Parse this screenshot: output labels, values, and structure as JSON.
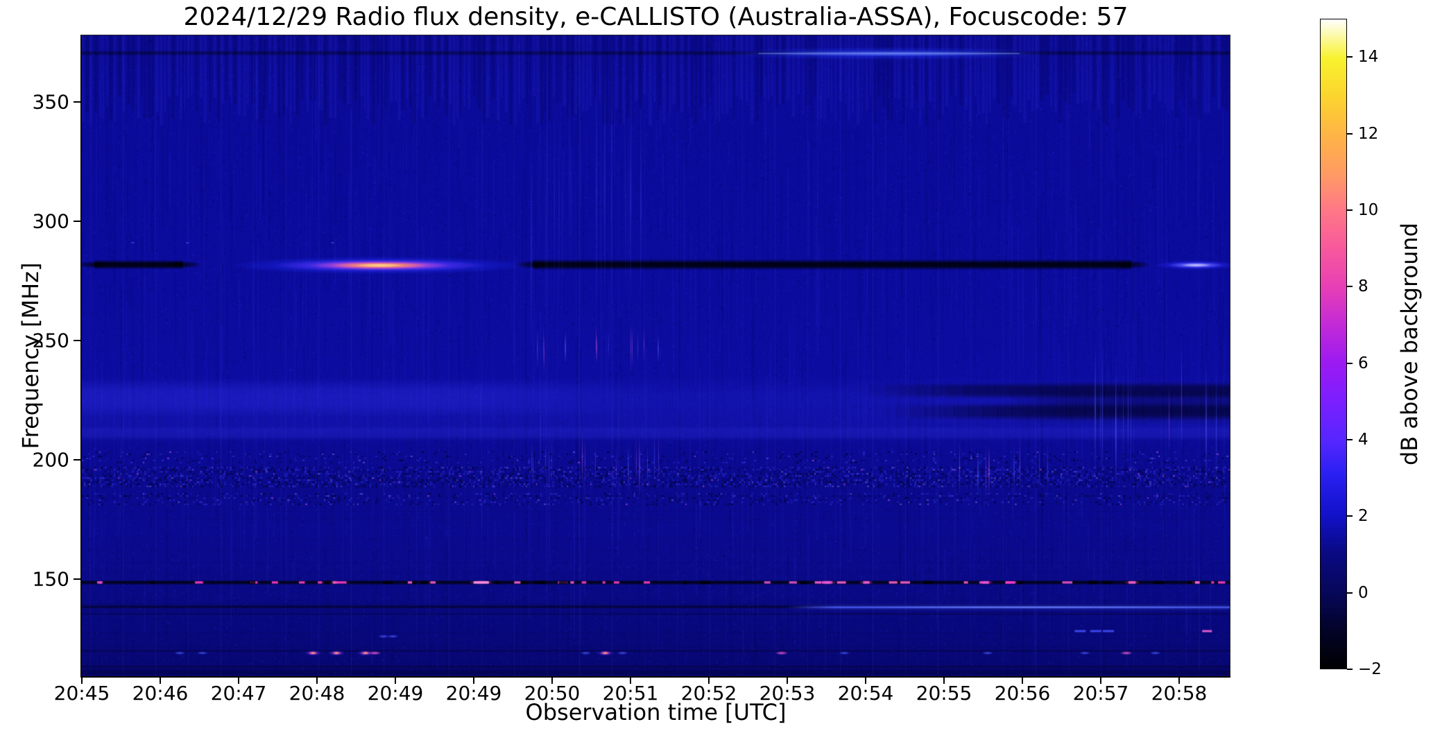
{
  "title": "2024/12/29  Radio flux density, e-CALLISTO (Australia-ASSA), Focuscode: 57",
  "x_axis": {
    "label": "Observation time [UTC]",
    "ticks": [
      "20:45",
      "20:46",
      "20:47",
      "20:48",
      "20:49",
      "20:49",
      "20:50",
      "20:51",
      "20:52",
      "20:53",
      "20:54",
      "20:55",
      "20:56",
      "20:57",
      "20:58"
    ]
  },
  "y_axis": {
    "label": "Frequency [MHz]",
    "ticks": [
      350,
      300,
      250,
      200,
      150
    ]
  },
  "colorbar": {
    "label": "dB above background",
    "range_db": [
      -2,
      15
    ],
    "ticks": [
      14,
      12,
      10,
      8,
      6,
      4,
      2,
      0,
      -2
    ],
    "tick_labels": [
      "14",
      "12",
      "10",
      "8",
      "6",
      "4",
      "2",
      "0",
      "−2"
    ],
    "gradient_stops": [
      [
        0,
        "#000000"
      ],
      [
        0.06,
        "#03032a"
      ],
      [
        0.12,
        "#07075c"
      ],
      [
        0.18,
        "#0a0a85"
      ],
      [
        0.235,
        "#1111c8"
      ],
      [
        0.3,
        "#2a20f2"
      ],
      [
        0.35,
        "#5526ff"
      ],
      [
        0.41,
        "#7a1fff"
      ],
      [
        0.47,
        "#9b1af2"
      ],
      [
        0.53,
        "#c32ad6"
      ],
      [
        0.59,
        "#e840b4"
      ],
      [
        0.65,
        "#f85a9b"
      ],
      [
        0.71,
        "#ff7a85"
      ],
      [
        0.76,
        "#ff9a64"
      ],
      [
        0.82,
        "#ffb347"
      ],
      [
        0.88,
        "#fbd42e"
      ],
      [
        0.94,
        "#f8f22e"
      ],
      [
        1,
        "#ffffff"
      ]
    ]
  },
  "chart_data": {
    "type": "heatmap",
    "title": "2024/12/29  Radio flux density, e-CALLISTO (Australia-ASSA), Focuscode: 57",
    "xlabel": "Observation time [UTC]",
    "ylabel": "Frequency [MHz]",
    "x_start_utc": "20:45",
    "x_range_minutes": [
      0,
      14.65
    ],
    "y_range_mhz": [
      109.3,
      377.9
    ],
    "value_unit": "dB above background",
    "value_range": [
      -2,
      15
    ],
    "background_level_db": 1,
    "base_color": "#0b0b9b",
    "features": [
      {
        "id": "line-370-dark",
        "type": "dark_line",
        "f": 370.5,
        "t": [
          0,
          14.65
        ],
        "th": 4,
        "alpha": 0.38
      },
      {
        "id": "streak-370-bright",
        "type": "streak",
        "f": 370.3,
        "t_center": 10.3,
        "half_min": 1.85,
        "ry": 4,
        "core": "#5c78ff",
        "glow": "#2138ff"
      },
      {
        "id": "line-281-dark-left",
        "type": "dark_seg",
        "f": 281.8,
        "t": [
          0,
          1.45
        ],
        "th": 7,
        "alpha": 0.88
      },
      {
        "id": "line-281-dark-main",
        "type": "dark_seg",
        "f": 281.8,
        "t": [
          5.6,
          13.55
        ],
        "th": 8,
        "alpha": 0.88
      },
      {
        "id": "burst-281-main",
        "type": "burst",
        "f": 281.5,
        "t_center": 3.8,
        "layers": [
          [
            1.95,
            13,
            "#2230ff",
            0.75
          ],
          [
            1.35,
            9,
            "#7a3bff",
            0.85
          ],
          [
            0.9,
            6.5,
            "#ff58c4",
            0.92
          ],
          [
            0.62,
            4.5,
            "#ff9a49",
            0.98
          ],
          [
            0.33,
            2.8,
            "#ffd88f",
            1
          ]
        ]
      },
      {
        "id": "burst-281-right",
        "type": "burst",
        "f": 281.6,
        "t_center": 14.22,
        "layers": [
          [
            0.55,
            7,
            "#2a2aff",
            0.8
          ],
          [
            0.36,
            4.5,
            "#6e6eff",
            0.9
          ],
          [
            0.2,
            2.6,
            "#cfcaff",
            0.95
          ]
        ]
      },
      {
        "id": "specks-291",
        "type": "dots",
        "f": 291,
        "dots": [
          [
            0.65,
            "speck"
          ],
          [
            1.35,
            "speck"
          ],
          [
            3.2,
            "speck"
          ]
        ]
      },
      {
        "id": "haze-207-235",
        "type": "soft_band",
        "f": [
          207,
          235
        ],
        "t": [
          0,
          14.65
        ],
        "color": "#2e2ee8",
        "alpha": 0.18
      },
      {
        "id": "haze-218-234-left",
        "type": "soft_band",
        "f": [
          218,
          234
        ],
        "t": [
          0,
          7.2
        ],
        "color": "#3535f0",
        "alpha": 0.22,
        "fade": "right"
      },
      {
        "id": "haze-208-215",
        "type": "soft_band",
        "f": [
          208,
          214.5
        ],
        "t": [
          0,
          14.65
        ],
        "color": "#3a3af2",
        "alpha": 0.2
      },
      {
        "id": "dark-band-right-upper",
        "type": "soft_band",
        "f": [
          225.5,
          232.5
        ],
        "t": [
          9.85,
          14.65
        ],
        "color": "#000022",
        "alpha": 0.5,
        "fade": "left"
      },
      {
        "id": "dark-band-right-lower",
        "type": "soft_band",
        "f": [
          216.5,
          224
        ],
        "t": [
          10.2,
          14.65
        ],
        "color": "#000022",
        "alpha": 0.5,
        "fade": "left"
      },
      {
        "id": "dark-band-right-merge",
        "type": "soft_band",
        "f": [
          214.5,
          233.5
        ],
        "t": [
          11.7,
          14.65
        ],
        "color": "#000022",
        "alpha": 0.32,
        "fade": "left"
      },
      {
        "id": "speckle-189-197",
        "type": "speckle",
        "f": [
          188.5,
          197
        ],
        "t": [
          0,
          14.65
        ],
        "density": 0.6
      },
      {
        "id": "speckle-181-186",
        "type": "speckle",
        "f": [
          181,
          186
        ],
        "t": [
          0,
          14.65
        ],
        "density": 0.3
      },
      {
        "id": "speckle-199-203",
        "type": "speckle",
        "f": [
          198.5,
          203.5
        ],
        "t": [
          0,
          14.65
        ],
        "density": 0.16
      },
      {
        "id": "hatch-150-160",
        "type": "hatch",
        "f": [
          149.5,
          160
        ],
        "t": [
          0,
          14.65
        ]
      },
      {
        "id": "hatch-139-147",
        "type": "hatch",
        "f": [
          139,
          147.5
        ],
        "t": [
          0,
          14.65
        ]
      },
      {
        "id": "dash-148",
        "type": "dash_line",
        "f": 148.6,
        "t": [
          0,
          14.65
        ],
        "n": 95,
        "special_t": 5.0
      },
      {
        "id": "line-138-dark",
        "type": "dark_line",
        "f": 138.4,
        "t": [
          0,
          14.65
        ],
        "th": 3,
        "alpha": 0.5
      },
      {
        "id": "line-135-dark",
        "type": "dark_line",
        "f": 135.4,
        "t": [
          0,
          14.65
        ],
        "th": 2,
        "alpha": 0.22
      },
      {
        "id": "line-138-bright",
        "type": "bright_line",
        "f": 138.2,
        "t": [
          9.0,
          14.65
        ],
        "color": "#4a5cff",
        "th": 2.4
      },
      {
        "id": "line-120-dark",
        "type": "dark_line",
        "f": 119.9,
        "t": [
          0,
          14.65
        ],
        "th": 2,
        "alpha": 0.28
      },
      {
        "id": "dots-119",
        "type": "dots",
        "f": 119,
        "dots": [
          [
            1.25,
            "blue"
          ],
          [
            1.54,
            "blue"
          ],
          [
            2.95,
            "hot"
          ],
          [
            3.25,
            "hot"
          ],
          [
            3.62,
            "hot"
          ],
          [
            3.74,
            "pink"
          ],
          [
            6.43,
            "blue"
          ],
          [
            6.68,
            "hot"
          ],
          [
            6.9,
            "blue"
          ],
          [
            8.93,
            "pink"
          ],
          [
            9.73,
            "blue"
          ],
          [
            11.56,
            "blue"
          ],
          [
            12.8,
            "blue"
          ],
          [
            13.33,
            "pink"
          ],
          [
            13.7,
            "blue"
          ]
        ]
      },
      {
        "id": "dots-126",
        "type": "dots",
        "f": 126,
        "dots": [
          [
            3.85,
            "blue"
          ],
          [
            3.97,
            "blue"
          ]
        ]
      },
      {
        "id": "dashes-128",
        "type": "dots",
        "f": 128.2,
        "dots": [
          [
            12.74,
            "bluedash"
          ],
          [
            12.94,
            "bluedash"
          ],
          [
            13.1,
            "bluedash"
          ],
          [
            14.36,
            "pinkdash"
          ]
        ]
      },
      {
        "id": "band-111-dark",
        "type": "soft_band",
        "f": [
          109.3,
          112.5
        ],
        "t": [
          0,
          14.65
        ],
        "color": "#000030",
        "alpha": 0.38
      },
      {
        "id": "line-113-dark",
        "type": "dark_line",
        "f": 113.3,
        "t": [
          0,
          14.65
        ],
        "th": 2,
        "alpha": 0.32
      },
      {
        "id": "vstreaks-mid-upper",
        "type": "vstreaks",
        "f": [
          236,
          258
        ],
        "t": [
          5.7,
          7.4
        ],
        "n": 13,
        "palette": [
          "#5560ff",
          "#5560ff",
          "#b050ff",
          "#ff6ae0"
        ]
      },
      {
        "id": "vstreaks-mid-lower",
        "type": "vstreaks",
        "f": [
          184,
          213
        ],
        "t": [
          5.7,
          7.4
        ],
        "n": 16,
        "palette": [
          "#5560ff",
          "#5560ff",
          "#9a50ff",
          "#ff6ae0"
        ]
      },
      {
        "id": "vstreaks-right",
        "type": "vstreaks",
        "f": [
          181,
          212
        ],
        "t": [
          11.2,
          12.4
        ],
        "n": 9,
        "palette": [
          "#5560ff",
          "#ff6ae0",
          "#c060ff"
        ]
      },
      {
        "id": "vstreaks-far-right",
        "type": "vstreaks",
        "f": [
          183,
          252
        ],
        "t": [
          12.9,
          14.5
        ],
        "n": 12,
        "palette": [
          "#5560ff",
          "#6a74ff",
          "#b860ff"
        ]
      },
      {
        "id": "vstriations-top",
        "type": "vstreaks",
        "f": [
          240,
          377
        ],
        "t": [
          5.5,
          7.7
        ],
        "n": 22,
        "palette": [
          "#4550ee"
        ],
        "alpha": 0.09
      }
    ]
  }
}
